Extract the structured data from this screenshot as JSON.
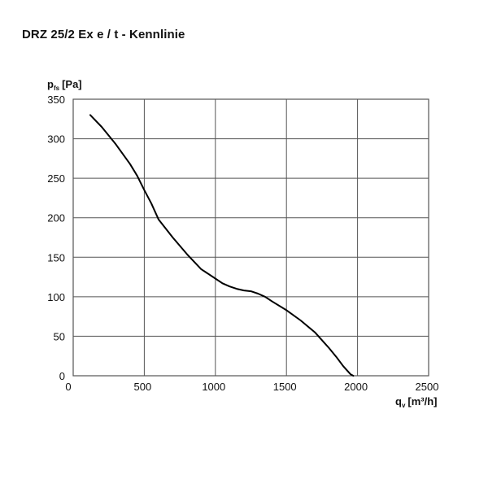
{
  "chart_data": {
    "type": "line",
    "title": "DRZ 25/2 Ex e / t - Kennlinie",
    "ylabel": {
      "main": "p",
      "sub": "fs",
      "unit": "[Pa]"
    },
    "xlabel": {
      "main": "q",
      "sub": "v",
      "unit": "[m³/h]"
    },
    "xlim": [
      0,
      2500
    ],
    "ylim": [
      0,
      350
    ],
    "x_ticks": [
      0,
      500,
      1000,
      1500,
      2000,
      2500
    ],
    "y_ticks": [
      0,
      50,
      100,
      150,
      200,
      250,
      300,
      350
    ],
    "grid": true,
    "legend": "none",
    "line_color": "#000000",
    "grid_color": "#555555",
    "series": [
      {
        "x": [
          120,
          200,
          300,
          400,
          450,
          500,
          550,
          600,
          700,
          800,
          900,
          1000,
          1050,
          1100,
          1150,
          1200,
          1250,
          1300,
          1350,
          1400,
          1500,
          1600,
          1700,
          1750,
          1800,
          1850,
          1900,
          1950,
          1970
        ],
        "y": [
          330,
          315,
          293,
          268,
          253,
          235,
          218,
          198,
          175,
          154,
          135,
          123,
          117,
          113,
          110,
          108,
          107,
          104,
          100,
          94,
          83,
          70,
          55,
          45,
          35,
          24,
          12,
          2,
          0
        ]
      }
    ]
  }
}
